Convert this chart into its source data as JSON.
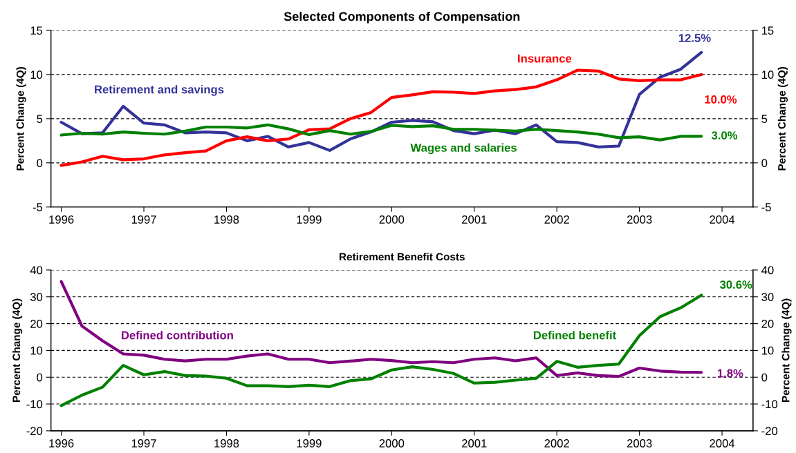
{
  "chart_data": [
    {
      "type": "line",
      "title": "Selected Components of Compensation",
      "ylabel": "Percent Change (4Q)",
      "y2label": "Percent Change (4Q)",
      "x": [
        1996,
        1996.25,
        1996.5,
        1996.75,
        1997,
        1997.25,
        1997.5,
        1997.75,
        1998,
        1998.25,
        1998.5,
        1998.75,
        1999,
        1999.25,
        1999.5,
        1999.75,
        2000,
        2000.25,
        2000.5,
        2000.75,
        2001,
        2001.25,
        2001.5,
        2001.75,
        2002,
        2002.25,
        2002.5,
        2002.75,
        2003,
        2003.25,
        2003.5,
        2003.75
      ],
      "xlim": [
        1995.875,
        2004.375
      ],
      "xticks": [
        1996,
        1997,
        1998,
        1999,
        2000,
        2001,
        2002,
        2003,
        2004
      ],
      "ylim": [
        -5,
        15
      ],
      "yticks": [
        -5,
        0,
        5,
        10,
        15
      ],
      "y2lim": [
        -5,
        15
      ],
      "y2ticks": [
        -5,
        0,
        5,
        10,
        15
      ],
      "grid": "y",
      "series": [
        {
          "name": "Retirement and savings",
          "color": "#333399",
          "values": [
            4.6,
            3.3,
            3.4,
            6.4,
            4.5,
            4.3,
            3.4,
            3.5,
            3.4,
            2.5,
            3.0,
            1.8,
            2.3,
            1.4,
            2.7,
            3.5,
            4.6,
            4.8,
            4.65,
            3.65,
            3.3,
            3.7,
            3.3,
            4.3,
            2.4,
            2.3,
            1.8,
            1.9,
            7.75,
            9.7,
            10.6,
            12.5
          ],
          "value_labels": [
            null,
            null,
            null,
            null,
            null,
            null,
            null,
            null,
            null,
            null,
            null,
            null,
            null,
            null,
            null,
            null,
            null,
            null,
            null,
            null,
            null,
            null,
            null,
            null,
            null,
            null,
            null,
            null,
            null,
            null,
            null,
            "12.5%"
          ]
        },
        {
          "name": "Insurance",
          "color": "#ff0000",
          "values": [
            -0.3,
            0.1,
            0.75,
            0.35,
            0.45,
            0.9,
            1.15,
            1.35,
            2.5,
            2.95,
            2.5,
            2.7,
            3.75,
            3.85,
            5.0,
            5.7,
            7.4,
            7.7,
            8.05,
            8.0,
            7.85,
            8.15,
            8.3,
            8.6,
            9.4,
            10.5,
            10.4,
            9.5,
            9.3,
            9.4,
            9.4,
            10.0
          ],
          "value_labels": [
            null,
            null,
            null,
            null,
            null,
            null,
            null,
            null,
            null,
            null,
            null,
            null,
            null,
            null,
            null,
            null,
            null,
            null,
            null,
            null,
            null,
            null,
            null,
            null,
            null,
            null,
            null,
            null,
            null,
            null,
            null,
            "10.0%"
          ]
        },
        {
          "name": "Wages and salaries",
          "color": "#008000",
          "values": [
            3.15,
            3.35,
            3.25,
            3.5,
            3.35,
            3.25,
            3.6,
            4.05,
            4.05,
            3.95,
            4.3,
            3.85,
            3.2,
            3.65,
            3.25,
            3.55,
            4.25,
            4.1,
            4.2,
            3.8,
            3.8,
            3.7,
            3.6,
            3.8,
            3.65,
            3.5,
            3.25,
            2.85,
            2.95,
            2.6,
            3.0,
            3.0
          ],
          "value_labels": [
            null,
            null,
            null,
            null,
            null,
            null,
            null,
            null,
            null,
            null,
            null,
            null,
            null,
            null,
            null,
            null,
            null,
            null,
            null,
            null,
            null,
            null,
            null,
            null,
            null,
            null,
            null,
            null,
            null,
            null,
            null,
            "3.0%"
          ]
        }
      ]
    },
    {
      "type": "line",
      "title": "Retirement Benefit Costs",
      "ylabel": "Percent Change (4Q)",
      "y2label": "Percent Change (4Q)",
      "x": [
        1996,
        1996.25,
        1996.5,
        1996.75,
        1997,
        1997.25,
        1997.5,
        1997.75,
        1998,
        1998.25,
        1998.5,
        1998.75,
        1999,
        1999.25,
        1999.5,
        1999.75,
        2000,
        2000.25,
        2000.5,
        2000.75,
        2001,
        2001.25,
        2001.5,
        2001.75,
        2002,
        2002.25,
        2002.5,
        2002.75,
        2003,
        2003.25,
        2003.5,
        2003.75
      ],
      "xlim": [
        1995.875,
        2004.375
      ],
      "xticks": [
        1996,
        1997,
        1998,
        1999,
        2000,
        2001,
        2002,
        2003,
        2004
      ],
      "ylim": [
        -20,
        40
      ],
      "yticks": [
        -20,
        -10,
        0,
        10,
        20,
        30,
        40
      ],
      "y2lim": [
        -20,
        40
      ],
      "y2ticks": [
        -20,
        -10,
        0,
        10,
        20,
        30,
        40
      ],
      "grid": "y",
      "series": [
        {
          "name": "Defined contribution",
          "color": "#800080",
          "values": [
            35.7,
            19.1,
            13.6,
            8.7,
            8.2,
            6.7,
            6.1,
            6.7,
            6.7,
            7.9,
            8.7,
            6.7,
            6.7,
            5.4,
            6.0,
            6.7,
            6.2,
            5.4,
            5.8,
            5.4,
            6.7,
            7.2,
            6.1,
            7.2,
            0.6,
            1.6,
            0.6,
            0.3,
            3.4,
            2.3,
            1.9,
            1.8
          ],
          "value_labels": [
            null,
            null,
            null,
            null,
            null,
            null,
            null,
            null,
            null,
            null,
            null,
            null,
            null,
            null,
            null,
            null,
            null,
            null,
            null,
            null,
            null,
            null,
            null,
            null,
            null,
            null,
            null,
            null,
            null,
            null,
            null,
            "1.8%"
          ]
        },
        {
          "name": "Defined benefit",
          "color": "#008000",
          "values": [
            -10.6,
            -6.7,
            -3.7,
            4.4,
            0.9,
            2.1,
            0.6,
            0.4,
            -0.4,
            -3.2,
            -3.2,
            -3.5,
            -3.0,
            -3.5,
            -1.3,
            -0.6,
            2.7,
            3.9,
            2.9,
            1.4,
            -2.2,
            -1.9,
            -1.1,
            -0.4,
            5.9,
            3.7,
            4.4,
            4.9,
            15.5,
            22.6,
            25.9,
            30.6
          ],
          "value_labels": [
            null,
            null,
            null,
            null,
            null,
            null,
            null,
            null,
            null,
            null,
            null,
            null,
            null,
            null,
            null,
            null,
            null,
            null,
            null,
            null,
            null,
            null,
            null,
            null,
            null,
            null,
            null,
            null,
            null,
            null,
            null,
            "30.6%"
          ]
        }
      ]
    }
  ]
}
